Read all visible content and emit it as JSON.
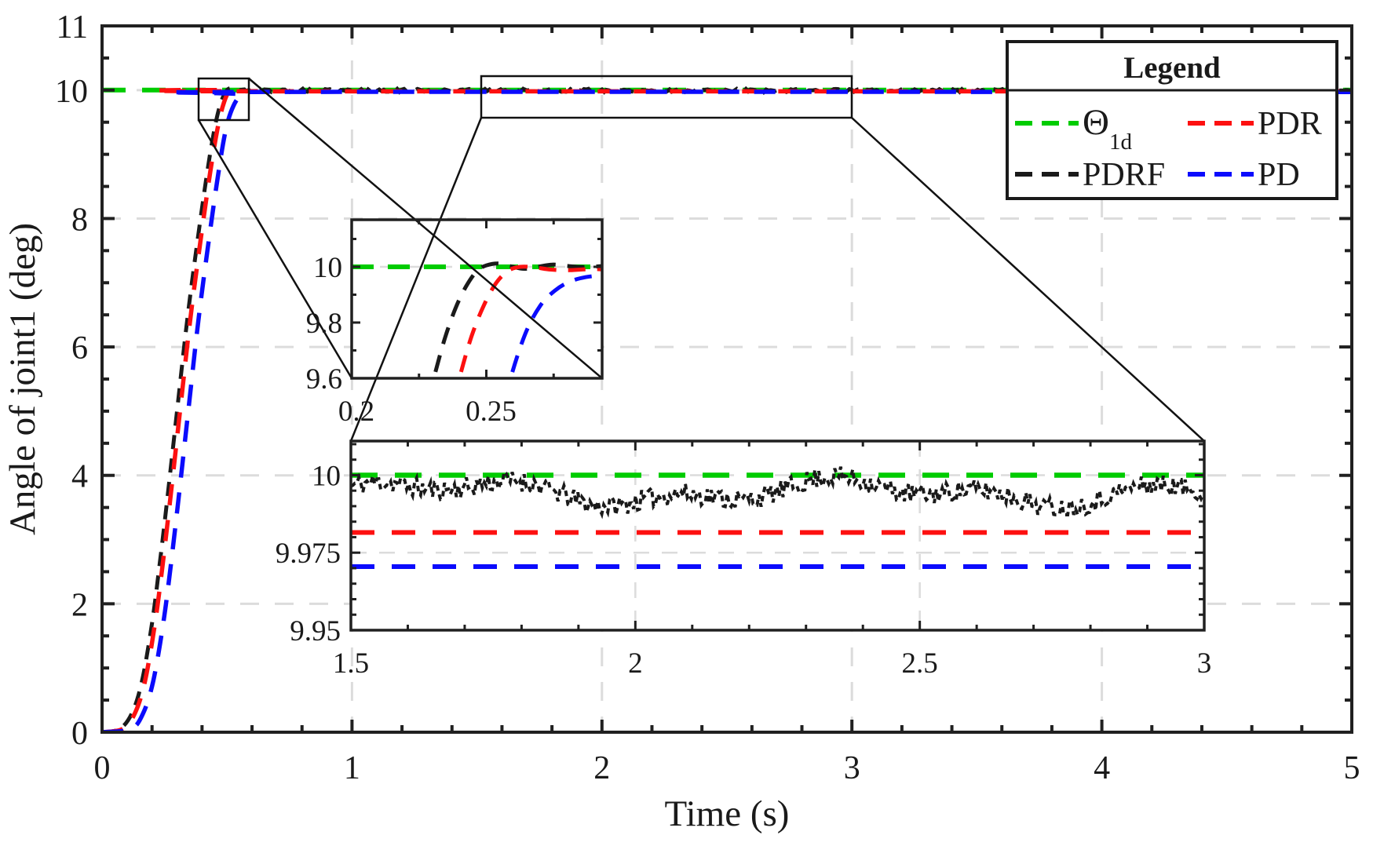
{
  "figure": {
    "background": "#ffffff",
    "type_note": "MATLAB-style step-response figure with two zoom insets and boxed legend"
  },
  "colors": {
    "green": "#00cc00",
    "red": "#fd1010",
    "blue": "#0b0bfd",
    "black": "#1a1a1a",
    "grid": "#dcdcdc",
    "axis": "#202020",
    "callout": "#111111",
    "background": "#ffffff"
  },
  "axis": {
    "xlabel": "Time (s)",
    "ylabel": "Angle of joint1 (deg)",
    "xlim": [
      0,
      5
    ],
    "ylim": [
      0,
      11
    ],
    "xticks": [
      0,
      1,
      2,
      3,
      4,
      5
    ],
    "xtick_labels": [
      "0",
      "1",
      "2",
      "3",
      "4",
      "5"
    ],
    "yticks": [
      0,
      2,
      4,
      6,
      8,
      10,
      11
    ],
    "ytick_labels": [
      "0",
      "2",
      "4",
      "6",
      "8",
      "10",
      "11"
    ],
    "x_minor_step": 0.2,
    "y_minor_step": 0.5,
    "grid": "on"
  },
  "legend": {
    "title": "Legend",
    "position": "top-right",
    "entries": [
      {
        "label": "Θ",
        "subscript": "1d",
        "color": "#00cc00",
        "style": "dashed"
      },
      {
        "label": "PDR",
        "subscript": "",
        "color": "#fd1010",
        "style": "dashed"
      },
      {
        "label": "PDRF",
        "subscript": "",
        "color": "#1a1a1a",
        "style": "dashed"
      },
      {
        "label": "PD",
        "subscript": "",
        "color": "#0b0bfd",
        "style": "dashed"
      }
    ]
  },
  "chart_data": {
    "type": "line",
    "title": "",
    "xlabel": "Time (s)",
    "ylabel": "Angle of joint1 (deg)",
    "xlim": [
      0,
      5
    ],
    "ylim": [
      0,
      11
    ],
    "grid": true,
    "series": [
      {
        "name": "Theta_1d",
        "color": "#00cc00",
        "style": "dashed",
        "points": [
          [
            0,
            10
          ],
          [
            5,
            10
          ]
        ]
      },
      {
        "name": "PDRF",
        "color": "#1a1a1a",
        "style": "dashed",
        "points": [
          [
            0,
            0
          ],
          [
            0.07,
            0.05
          ],
          [
            0.12,
            0.3
          ],
          [
            0.16,
            0.8
          ],
          [
            0.2,
            1.7
          ],
          [
            0.23,
            2.6
          ],
          [
            0.26,
            3.6
          ],
          [
            0.3,
            5.0
          ],
          [
            0.34,
            6.4
          ],
          [
            0.38,
            7.6
          ],
          [
            0.42,
            8.7
          ],
          [
            0.45,
            9.4
          ],
          [
            0.475,
            9.8
          ],
          [
            0.5,
            10.0
          ],
          [
            0.525,
            10.03
          ],
          [
            0.55,
            10.0
          ]
        ],
        "steady_noise": {
          "from": 0.56,
          "to": 4.99,
          "step": 0.009,
          "base": 9.996,
          "amp": 0.05,
          "seed": 5
        }
      },
      {
        "name": "PDR",
        "color": "#fd1010",
        "style": "dashed",
        "points": [
          [
            0,
            0
          ],
          [
            0.082,
            0.05
          ],
          [
            0.132,
            0.3
          ],
          [
            0.172,
            0.8
          ],
          [
            0.212,
            1.7
          ],
          [
            0.242,
            2.6
          ],
          [
            0.272,
            3.6
          ],
          [
            0.312,
            5.0
          ],
          [
            0.352,
            6.4
          ],
          [
            0.392,
            7.6
          ],
          [
            0.432,
            8.7
          ],
          [
            0.462,
            9.4
          ],
          [
            0.487,
            9.8
          ],
          [
            0.512,
            9.99
          ],
          [
            0.55,
            9.9815
          ]
        ],
        "steady_value": 9.9815
      },
      {
        "name": "PD",
        "color": "#0b0bfd",
        "style": "dashed",
        "points": [
          [
            0,
            0
          ],
          [
            0.115,
            0.05
          ],
          [
            0.165,
            0.3
          ],
          [
            0.205,
            0.8
          ],
          [
            0.245,
            1.7
          ],
          [
            0.275,
            2.6
          ],
          [
            0.305,
            3.6
          ],
          [
            0.345,
            5.0
          ],
          [
            0.385,
            6.4
          ],
          [
            0.425,
            7.6
          ],
          [
            0.465,
            8.7
          ],
          [
            0.495,
            9.38
          ],
          [
            0.525,
            9.75
          ],
          [
            0.56,
            9.93
          ],
          [
            0.61,
            9.9705
          ]
        ],
        "steady_value": 9.9705
      }
    ],
    "insets": [
      {
        "id": "inset-rise-zoom",
        "xlim": [
          0.2,
          0.293
        ],
        "ylim": [
          9.6,
          10.169
        ],
        "xticks": [
          0.2,
          0.25
        ],
        "xtick_labels": [
          "0.2",
          "0.25"
        ],
        "x_minor_ticks": [
          0.225,
          0.275
        ],
        "yticks": [
          9.6,
          9.8,
          10
        ],
        "ytick_labels": [
          "9.6",
          "9.8",
          "10"
        ],
        "y_minor_ticks": [
          9.7,
          9.9,
          10.1
        ],
        "series": [
          {
            "name": "Theta_1d",
            "color": "#00cc00",
            "points": [
              [
                0.2,
                10
              ],
              [
                0.295,
                10
              ]
            ]
          },
          {
            "name": "PDRF",
            "color": "#1a1a1a",
            "points": [
              [
                0.226,
                9.42
              ],
              [
                0.2305,
                9.6
              ],
              [
                0.2345,
                9.74
              ],
              [
                0.2385,
                9.85
              ],
              [
                0.2425,
                9.93
              ],
              [
                0.2465,
                9.985
              ],
              [
                0.25,
                10.005
              ],
              [
                0.2545,
                10.012
              ],
              [
                0.259,
                10.002
              ],
              [
                0.264,
                9.993
              ],
              [
                0.269,
                10.0
              ],
              [
                0.2745,
                10.008
              ],
              [
                0.28,
                10.003
              ],
              [
                0.286,
                9.999
              ],
              [
                0.295,
                10.004
              ]
            ]
          },
          {
            "name": "PDR",
            "color": "#fd1010",
            "points": [
              [
                0.2355,
                9.42
              ],
              [
                0.24,
                9.6
              ],
              [
                0.2445,
                9.75
              ],
              [
                0.249,
                9.86
              ],
              [
                0.2535,
                9.94
              ],
              [
                0.258,
                9.985
              ],
              [
                0.2625,
                10.0
              ],
              [
                0.268,
                9.998
              ],
              [
                0.274,
                9.99
              ],
              [
                0.281,
                9.988
              ],
              [
                0.289,
                9.992
              ],
              [
                0.295,
                9.99
              ]
            ]
          },
          {
            "name": "PD",
            "color": "#0b0bfd",
            "points": [
              [
                0.2545,
                9.42
              ],
              [
                0.259,
                9.6
              ],
              [
                0.2645,
                9.76
              ],
              [
                0.27,
                9.86
              ],
              [
                0.2755,
                9.915
              ],
              [
                0.281,
                9.947
              ],
              [
                0.287,
                9.963
              ],
              [
                0.295,
                9.972
              ]
            ]
          }
        ]
      },
      {
        "id": "inset-steady-zoom",
        "xlim": [
          1.5,
          3
        ],
        "ylim": [
          9.95,
          10.011
        ],
        "xticks": [
          1.5,
          2,
          2.5,
          3
        ],
        "xtick_labels": [
          "1.5",
          "2",
          "2.5",
          "3"
        ],
        "x_minor_step": 0.1,
        "yticks": [
          9.95,
          9.975,
          10
        ],
        "ytick_labels": [
          "9.95",
          "9.975",
          "10"
        ],
        "y_minor_step": 0.005,
        "series": [
          {
            "name": "Theta_1d",
            "color": "#00cc00",
            "points": [
              [
                1.5,
                10
              ],
              [
                3,
                10
              ]
            ]
          },
          {
            "name": "PDRF",
            "color": "#1a1a1a",
            "noise": {
              "from": 1.5,
              "to": 3.0,
              "step": 0.0035,
              "base": 9.9945,
              "amp": 0.0065,
              "s1": 0.003,
              "f1": 9,
              "s2": 0.0022,
              "f2": 23,
              "seed": 11,
              "min": 9.9872,
              "max": 10.0035
            }
          },
          {
            "name": "PDR",
            "color": "#fd1010",
            "points": [
              [
                1.5,
                9.9815
              ],
              [
                3,
                9.9815
              ]
            ]
          },
          {
            "name": "PD",
            "color": "#0b0bfd",
            "points": [
              [
                1.5,
                9.9705
              ],
              [
                3,
                9.9705
              ]
            ]
          }
        ]
      }
    ]
  }
}
